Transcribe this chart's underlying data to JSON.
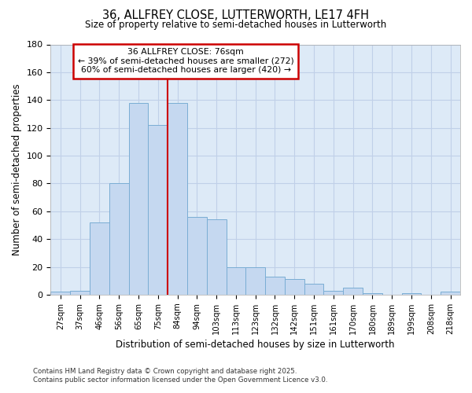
{
  "title": "36, ALLFREY CLOSE, LUTTERWORTH, LE17 4FH",
  "subtitle": "Size of property relative to semi-detached houses in Lutterworth",
  "xlabel": "Distribution of semi-detached houses by size in Lutterworth",
  "ylabel": "Number of semi-detached properties",
  "categories": [
    "27sqm",
    "37sqm",
    "46sqm",
    "56sqm",
    "65sqm",
    "75sqm",
    "84sqm",
    "94sqm",
    "103sqm",
    "113sqm",
    "123sqm",
    "132sqm",
    "142sqm",
    "151sqm",
    "161sqm",
    "170sqm",
    "180sqm",
    "189sqm",
    "199sqm",
    "208sqm",
    "218sqm"
  ],
  "values": [
    2,
    3,
    52,
    80,
    138,
    122,
    138,
    56,
    54,
    20,
    20,
    13,
    11,
    8,
    3,
    5,
    1,
    0,
    1,
    0,
    2
  ],
  "bar_color": "#c5d8f0",
  "bar_edge_color": "#7aadd4",
  "vline_x": 5.5,
  "vline_color": "#cc0000",
  "annotation_title": "36 ALLFREY CLOSE: 76sqm",
  "annotation_line1": "← 39% of semi-detached houses are smaller (272)",
  "annotation_line2": "60% of semi-detached houses are larger (420) →",
  "annotation_box_color": "#ffffff",
  "annotation_box_edge_color": "#cc0000",
  "plot_bg_color": "#ddeaf7",
  "fig_bg_color": "#ffffff",
  "grid_color": "#c0d0e8",
  "ylim": [
    0,
    180
  ],
  "yticks": [
    0,
    20,
    40,
    60,
    80,
    100,
    120,
    140,
    160,
    180
  ],
  "footer_line1": "Contains HM Land Registry data © Crown copyright and database right 2025.",
  "footer_line2": "Contains public sector information licensed under the Open Government Licence v3.0."
}
